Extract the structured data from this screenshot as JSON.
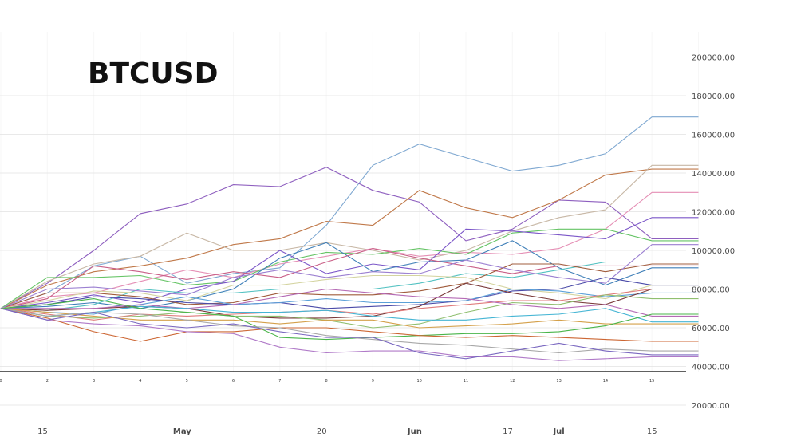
{
  "chart_data": {
    "type": "line",
    "title": "BTCUSD",
    "xlabel": "",
    "ylabel": "",
    "ylim": [
      20000,
      200000
    ],
    "y_ticks": [
      20000,
      40000,
      60000,
      80000,
      100000,
      120000,
      140000,
      160000,
      180000,
      200000
    ],
    "y_tick_labels": [
      "20000.00",
      "40000.00",
      "60000.00",
      "80000.00",
      "100000.00",
      "120000.00",
      "140000.00",
      "160000.00",
      "180000.00",
      "200000.00"
    ],
    "date_ticks": [
      {
        "label": "15",
        "bold": false,
        "x": 0.9
      },
      {
        "label": "May",
        "bold": true,
        "x": 3.9
      },
      {
        "label": "20",
        "bold": false,
        "x": 6.9
      },
      {
        "label": "Jun",
        "bold": true,
        "x": 8.9
      },
      {
        "label": "17",
        "bold": false,
        "x": 10.9
      },
      {
        "label": "Jul",
        "bold": true,
        "x": 12.0
      },
      {
        "label": "15",
        "bold": false,
        "x": 14.0
      }
    ],
    "step_ticks": [
      "0",
      "2",
      "3",
      "4",
      "5",
      "6",
      "7",
      "8",
      "9",
      "10",
      "11",
      "12",
      "13",
      "14",
      "15"
    ],
    "x": [
      0,
      1,
      2,
      3,
      4,
      5,
      6,
      7,
      8,
      9,
      10,
      11,
      12,
      13,
      14,
      15
    ],
    "grid": true,
    "legend": "none",
    "series": [
      {
        "color": "#7fa8d1",
        "values": [
          70000,
          78000,
          92000,
          97000,
          83000,
          88000,
          91000,
          113000,
          144000,
          155000,
          148000,
          141000,
          144000,
          150000,
          169000,
          169000
        ]
      },
      {
        "color": "#8e5fbf",
        "values": [
          70000,
          83000,
          100000,
          119000,
          124000,
          134000,
          133000,
          143000,
          131000,
          125000,
          105000,
          111000,
          126000,
          125000,
          106000,
          106000
        ]
      },
      {
        "color": "#c0794a",
        "values": [
          70000,
          82000,
          89000,
          92000,
          96000,
          103000,
          106000,
          115000,
          113000,
          131000,
          122000,
          117000,
          126000,
          139000,
          142000,
          142000
        ]
      },
      {
        "color": "#c8b8a6",
        "values": [
          70000,
          84000,
          93000,
          97000,
          109000,
          100000,
          100000,
          104000,
          100000,
          95000,
          100000,
          110000,
          117000,
          121000,
          144000,
          144000
        ]
      },
      {
        "color": "#e58fb5",
        "values": [
          70000,
          76000,
          78000,
          84000,
          90000,
          86000,
          93000,
          97000,
          101000,
          97000,
          99000,
          98000,
          101000,
          111000,
          130000,
          130000
        ]
      },
      {
        "color": "#66c466",
        "values": [
          70000,
          86000,
          86000,
          87000,
          82000,
          84000,
          94000,
          99000,
          98000,
          101000,
          98000,
          109000,
          111000,
          111000,
          105000,
          105000
        ]
      },
      {
        "color": "#7b56c8",
        "values": [
          70000,
          73000,
          77000,
          73000,
          80000,
          84000,
          100000,
          88000,
          93000,
          90000,
          111000,
          110000,
          108000,
          106000,
          117000,
          117000
        ]
      },
      {
        "color": "#3f7fb8",
        "values": [
          70000,
          71000,
          73000,
          70000,
          74000,
          80000,
          96000,
          104000,
          89000,
          94000,
          95000,
          105000,
          91000,
          82000,
          91000,
          91000
        ]
      },
      {
        "color": "#c95f87",
        "values": [
          70000,
          75000,
          92000,
          89000,
          85000,
          89000,
          86000,
          94000,
          101000,
          96000,
          92000,
          88000,
          92000,
          92000,
          92000,
          92000
        ]
      },
      {
        "color": "#54c2c2",
        "values": [
          70000,
          69000,
          72000,
          80000,
          78000,
          78000,
          80000,
          80000,
          80000,
          83000,
          88000,
          86000,
          90000,
          94000,
          94000,
          94000
        ]
      },
      {
        "color": "#a05c3c",
        "values": [
          70000,
          78000,
          78000,
          76000,
          72000,
          73000,
          78000,
          77000,
          77000,
          79000,
          83000,
          93000,
          93000,
          89000,
          93000,
          93000
        ]
      },
      {
        "color": "#9b7fd1",
        "values": [
          70000,
          80000,
          81000,
          79000,
          77000,
          86000,
          90000,
          86000,
          89000,
          88000,
          95000,
          90000,
          86000,
          83000,
          103000,
          103000
        ]
      },
      {
        "color": "#d4d4a0",
        "values": [
          70000,
          74000,
          79000,
          78000,
          74000,
          82000,
          82000,
          85000,
          87000,
          87000,
          86000,
          80000,
          78000,
          75000,
          82000,
          82000
        ]
      },
      {
        "color": "#4a4aa8",
        "values": [
          70000,
          72000,
          76000,
          75000,
          73000,
          72000,
          73000,
          70000,
          71000,
          72000,
          74000,
          79000,
          80000,
          86000,
          82000,
          82000
        ]
      },
      {
        "color": "#5ba0d8",
        "values": [
          70000,
          68000,
          67000,
          72000,
          76000,
          72000,
          73000,
          75000,
          73000,
          73000,
          74000,
          80000,
          79000,
          76000,
          78000,
          78000
        ]
      },
      {
        "color": "#7a3a3a",
        "values": [
          70000,
          69000,
          70000,
          71000,
          70000,
          66000,
          65000,
          65000,
          66000,
          71000,
          83000,
          78000,
          74000,
          72000,
          80000,
          80000
        ]
      },
      {
        "color": "#e07a7a",
        "values": [
          70000,
          67000,
          64000,
          67000,
          66000,
          67000,
          68000,
          69000,
          67000,
          70000,
          72000,
          74000,
          74000,
          77000,
          80000,
          80000
        ]
      },
      {
        "color": "#8fbf6f",
        "values": [
          70000,
          66000,
          65000,
          66000,
          68000,
          66000,
          66000,
          64000,
          60000,
          62000,
          68000,
          73000,
          72000,
          77000,
          75000,
          75000
        ]
      },
      {
        "color": "#b56ab5",
        "values": [
          70000,
          70000,
          70000,
          72000,
          70000,
          72000,
          76000,
          80000,
          78000,
          76000,
          75000,
          72000,
          70000,
          72000,
          66000,
          66000
        ]
      },
      {
        "color": "#45b5d4",
        "values": [
          70000,
          66000,
          68000,
          71000,
          70000,
          68000,
          68000,
          69000,
          66000,
          64000,
          64000,
          66000,
          67000,
          70000,
          63000,
          63000
        ]
      },
      {
        "color": "#d4a04a",
        "values": [
          70000,
          68000,
          66000,
          64000,
          64000,
          64000,
          62000,
          64000,
          64000,
          60000,
          61000,
          62000,
          64000,
          62000,
          62000,
          62000
        ]
      },
      {
        "color": "#4ab54a",
        "values": [
          70000,
          72000,
          75000,
          70000,
          68000,
          66000,
          55000,
          54000,
          55000,
          56000,
          57000,
          57000,
          58000,
          61000,
          67000,
          67000
        ]
      },
      {
        "color": "#cc6633",
        "values": [
          70000,
          65000,
          58000,
          53000,
          58000,
          58000,
          60000,
          60000,
          58000,
          56000,
          55000,
          56000,
          55000,
          54000,
          53000,
          53000
        ]
      },
      {
        "color": "#a8a8a8",
        "values": [
          70000,
          66000,
          68000,
          67000,
          64000,
          61000,
          60000,
          56000,
          54000,
          52000,
          51000,
          49000,
          47000,
          49000,
          48000,
          48000
        ]
      },
      {
        "color": "#b07ac8",
        "values": [
          70000,
          64000,
          62000,
          61000,
          58000,
          57000,
          50000,
          47000,
          48000,
          48000,
          45000,
          45000,
          43000,
          44000,
          45000,
          45000
        ]
      },
      {
        "color": "#7a68c0",
        "values": [
          70000,
          64000,
          68000,
          62000,
          60000,
          62000,
          58000,
          55000,
          55000,
          47000,
          44000,
          48000,
          52000,
          48000,
          46000,
          46000
        ]
      }
    ]
  }
}
